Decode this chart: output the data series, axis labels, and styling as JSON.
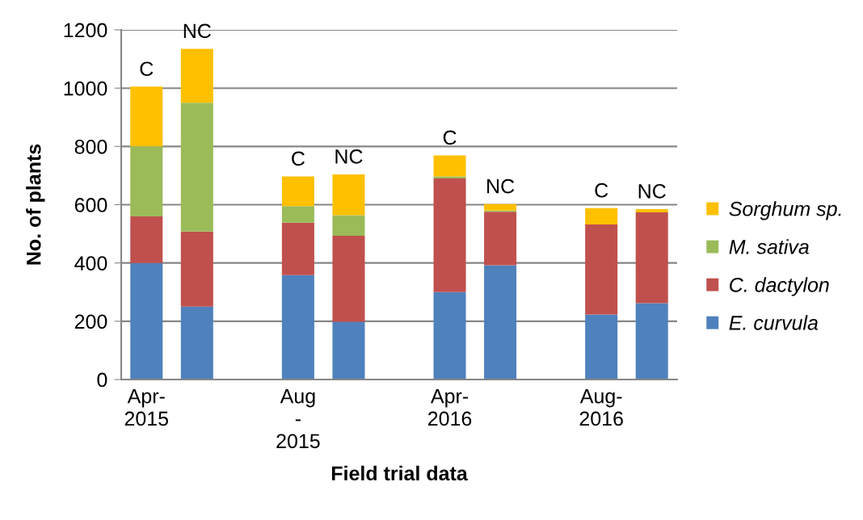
{
  "chart_data": {
    "type": "bar",
    "stacked": true,
    "xlabel": "Field trial data",
    "ylabel": "No. of plants",
    "categories": [
      "Apr-\n2015",
      null,
      null,
      "Aug\n-\n2015",
      null,
      null,
      "Apr-\n2016",
      null,
      null,
      "Aug-\n2016",
      null
    ],
    "series": [
      {
        "name": "E. curvula",
        "color": "#4f81bd",
        "values": [
          400,
          250,
          null,
          358,
          198,
          null,
          300,
          392,
          null,
          223,
          262
        ]
      },
      {
        "name": "C. dactylon",
        "color": "#c0504d",
        "values": [
          160,
          258,
          null,
          180,
          295,
          null,
          390,
          184,
          null,
          309,
          312
        ]
      },
      {
        "name": "M. sativa",
        "color": "#9bbb59",
        "values": [
          240,
          442,
          null,
          57,
          71,
          null,
          7,
          4,
          null,
          0,
          0
        ]
      },
      {
        "name": "Sorghum sp.",
        "color": "#ffc000",
        "values": [
          205,
          185,
          null,
          102,
          140,
          null,
          72,
          22,
          null,
          56,
          11
        ],
        "value_labels": [
          "C",
          "NC",
          null,
          "C",
          "NC",
          null,
          "C",
          "NC",
          null,
          "C",
          "NC"
        ]
      }
    ],
    "ylim": [
      0,
      1200
    ],
    "yticks": [
      0,
      200,
      400,
      600,
      800,
      1000,
      1200
    ],
    "grid": "y",
    "legend": "right"
  }
}
